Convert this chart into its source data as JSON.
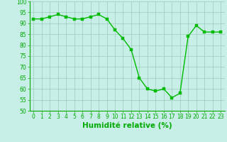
{
  "x": [
    0,
    1,
    2,
    3,
    4,
    5,
    6,
    7,
    8,
    9,
    10,
    11,
    12,
    13,
    14,
    15,
    16,
    17,
    18,
    19,
    20,
    21,
    22,
    23
  ],
  "y": [
    92,
    92,
    93,
    94,
    93,
    92,
    92,
    93,
    94,
    92,
    87,
    83,
    78,
    65,
    60,
    59,
    60,
    56,
    58,
    84,
    89,
    86,
    86,
    86
  ],
  "line_color": "#00bb00",
  "marker_color": "#00bb00",
  "bg_color": "#c8eee8",
  "grid_color": "#99ccbb",
  "xlabel": "Humidité relative (%)",
  "xlabel_color": "#00aa00",
  "ylim": [
    50,
    100
  ],
  "xlim": [
    -0.5,
    23.5
  ],
  "yticks": [
    50,
    55,
    60,
    65,
    70,
    75,
    80,
    85,
    90,
    95,
    100
  ],
  "xticks": [
    0,
    1,
    2,
    3,
    4,
    5,
    6,
    7,
    8,
    9,
    10,
    11,
    12,
    13,
    14,
    15,
    16,
    17,
    18,
    19,
    20,
    21,
    22,
    23
  ],
  "tick_color": "#00aa00",
  "tick_fontsize": 5.5,
  "xlabel_fontsize": 7.5,
  "line_width": 1.0,
  "marker_size": 2.5
}
